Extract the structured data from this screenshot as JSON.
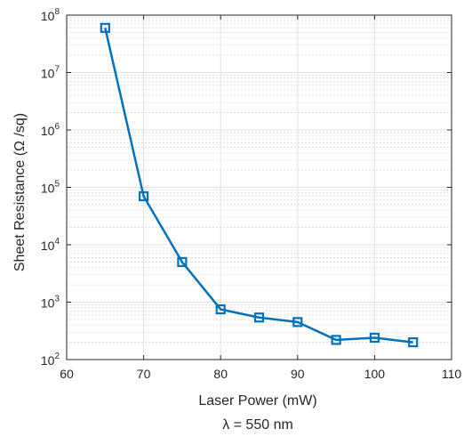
{
  "chart_data": {
    "type": "line",
    "xlabel": "Laser Power (mW)",
    "xlabel_sub": "λ = 550 nm",
    "ylabel": "Sheet Resistance (Ω /sq)",
    "xlim": [
      60,
      110
    ],
    "ylim": [
      100,
      100000000
    ],
    "yscale": "log",
    "grid": true,
    "minor_grid": true,
    "x_ticks": [
      60,
      70,
      80,
      90,
      100,
      110
    ],
    "x_tick_labels": [
      "60",
      "70",
      "80",
      "90",
      "100",
      "110"
    ],
    "y_ticks": [
      100,
      1000,
      10000,
      100000,
      1000000,
      10000000,
      100000000
    ],
    "y_tick_labels": [
      {
        "base": "10",
        "exp": "2"
      },
      {
        "base": "10",
        "exp": "3"
      },
      {
        "base": "10",
        "exp": "4"
      },
      {
        "base": "10",
        "exp": "5"
      },
      {
        "base": "10",
        "exp": "6"
      },
      {
        "base": "10",
        "exp": "7"
      },
      {
        "base": "10",
        "exp": "8"
      }
    ],
    "series": [
      {
        "x": [
          65,
          70,
          75,
          80,
          85,
          90,
          95,
          100,
          105
        ],
        "y": [
          60000000,
          70000,
          5000,
          750,
          540,
          450,
          220,
          240,
          200
        ],
        "color": "#0072BD",
        "marker": "square"
      }
    ]
  }
}
